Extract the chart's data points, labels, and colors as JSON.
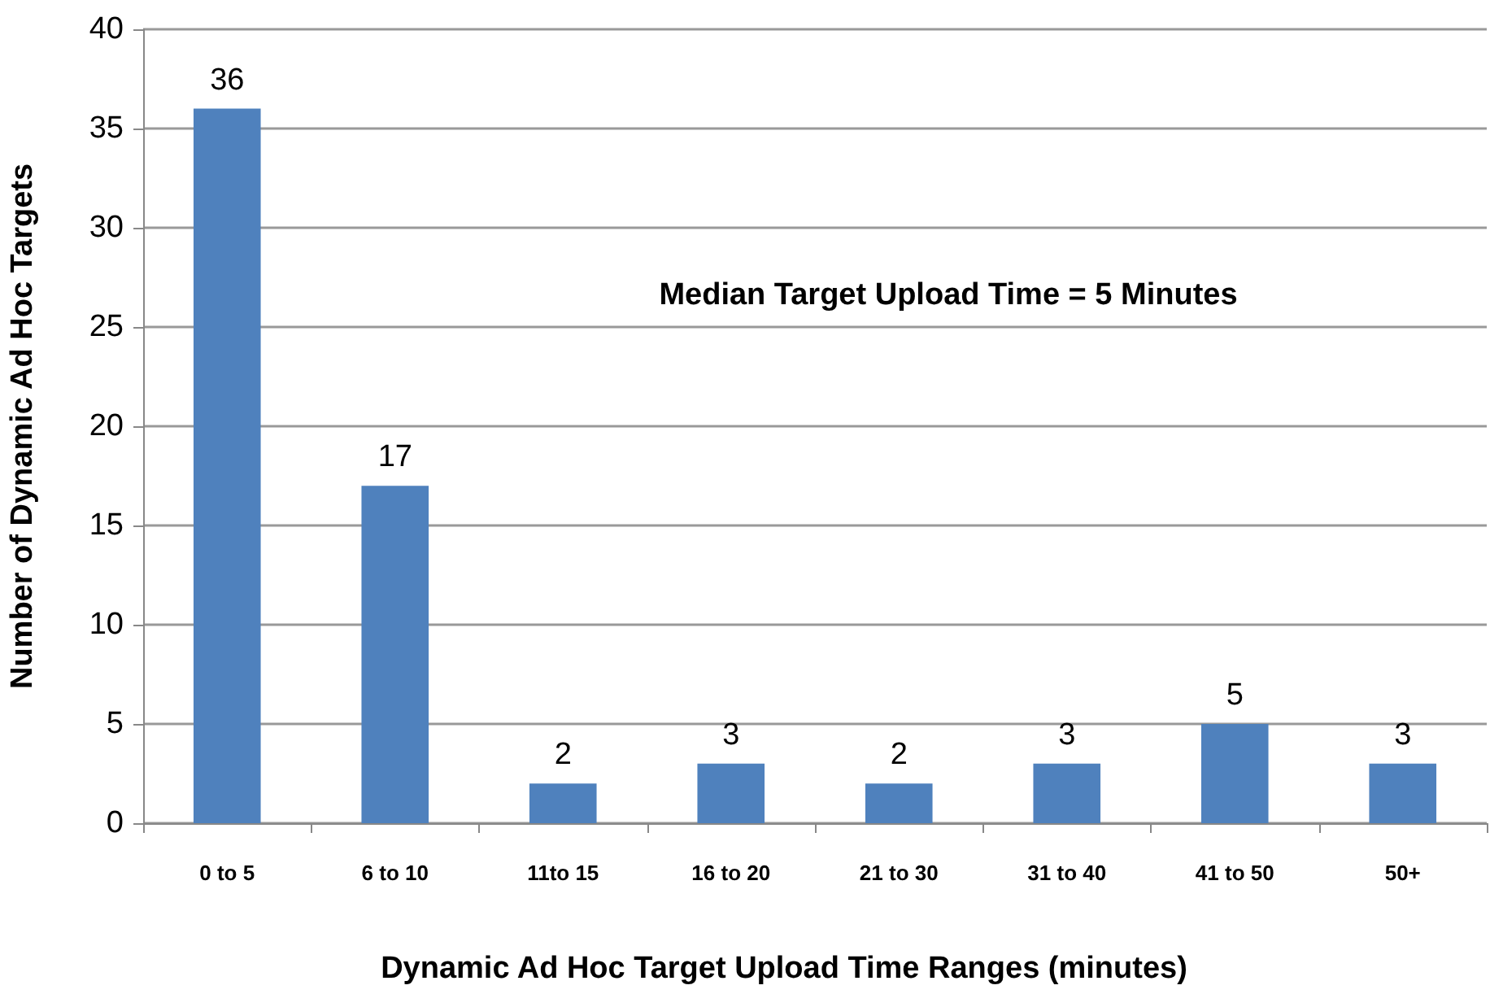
{
  "chart_data": {
    "type": "bar",
    "xlabel": "Dynamic Ad Hoc Target Upload Time Ranges (minutes)",
    "ylabel": "Number of Dynamic Ad Hoc Targets",
    "categories": [
      "0 to 5",
      "6 to 10",
      "11to 15",
      "16 to 20",
      "21 to 30",
      "31 to 40",
      "41 to 50",
      "50+"
    ],
    "values": [
      36,
      17,
      2,
      3,
      2,
      3,
      5,
      3
    ],
    "color": "#4f81bd",
    "data_labels": true,
    "ylim": [
      0,
      40
    ],
    "yticks": [
      0,
      5,
      10,
      15,
      20,
      25,
      30,
      35,
      40
    ],
    "grid": "y",
    "annotations": [
      "Median Target Upload Time = 5 Minutes"
    ]
  }
}
